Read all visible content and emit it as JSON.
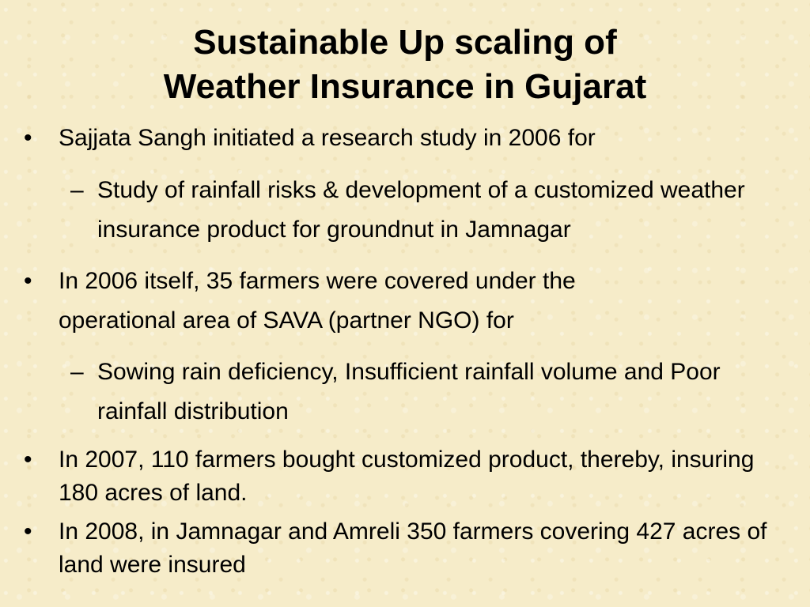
{
  "slide": {
    "title_line1": "Sustainable Up scaling of",
    "title_line2": "Weather Insurance in Gujarat",
    "bullet_marker": "•",
    "dash_marker": "–",
    "items": [
      {
        "level": 1,
        "text": "Sajjata Sangh initiated a research study in 2006 for"
      },
      {
        "level": 2,
        "text": "Study of rainfall risks & development of a customized weather insurance product for groundnut in Jamnagar"
      },
      {
        "level": 1,
        "text": "In 2006 itself, 35 farmers were covered under the operational area of SAVA (partner NGO) for"
      },
      {
        "level": 2,
        "text": "Sowing rain deficiency, Insufficient rainfall volume and Poor rainfall distribution"
      },
      {
        "level": 1,
        "text": "In 2007, 110 farmers bought customized product, thereby, insuring 180 acres of land."
      },
      {
        "level": 1,
        "text": "In 2008, in Jamnagar and Amreli 350 farmers covering 427 acres of land were insured"
      }
    ]
  }
}
